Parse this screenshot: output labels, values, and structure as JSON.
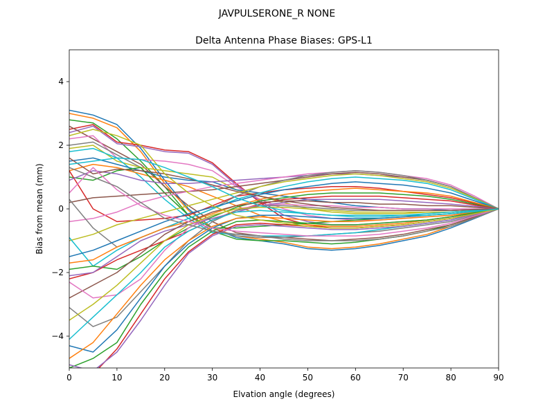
{
  "chart_data": {
    "type": "line",
    "suptitle": "JAVPULSERONE_R  NONE",
    "title": "Delta Antenna Phase Biases: GPS-L1",
    "xlabel": "Elvation angle (degrees)",
    "ylabel": "Bias from mean (mm)",
    "xlim": [
      0,
      90
    ],
    "ylim": [
      -5,
      5
    ],
    "xticks": [
      0,
      10,
      20,
      30,
      40,
      50,
      60,
      70,
      80,
      90
    ],
    "yticks": [
      -4,
      -2,
      0,
      2,
      4
    ],
    "grid": false,
    "legend": "none",
    "x": [
      0,
      5,
      10,
      15,
      20,
      25,
      30,
      35,
      40,
      45,
      50,
      55,
      60,
      65,
      70,
      75,
      80,
      85,
      90
    ],
    "colors": [
      "#1f77b4",
      "#ff7f0e",
      "#2ca02c",
      "#d62728",
      "#9467bd",
      "#8c564b",
      "#e377c2",
      "#7f7f7f",
      "#bcbd22",
      "#17becf"
    ],
    "series": [
      {
        "values": [
          3.1,
          2.95,
          2.65,
          1.9,
          0.9,
          0.0,
          -0.6,
          -0.9,
          -1.0,
          -1.1,
          -1.25,
          -1.3,
          -1.25,
          -1.15,
          -1.0,
          -0.85,
          -0.6,
          -0.3,
          0.0
        ]
      },
      {
        "values": [
          3.0,
          2.85,
          2.55,
          1.8,
          0.8,
          -0.05,
          -0.6,
          -0.85,
          -0.95,
          -1.05,
          -1.2,
          -1.25,
          -1.2,
          -1.1,
          -0.95,
          -0.8,
          -0.55,
          -0.28,
          0.0
        ]
      },
      {
        "values": [
          2.8,
          2.7,
          2.2,
          1.5,
          0.7,
          -0.2,
          -0.7,
          -0.95,
          -1.0,
          -1.0,
          -1.05,
          -1.1,
          -1.05,
          -0.95,
          -0.85,
          -0.7,
          -0.5,
          -0.25,
          0.0
        ]
      },
      {
        "values": [
          2.5,
          2.65,
          2.1,
          2.0,
          1.85,
          1.8,
          1.45,
          0.8,
          0.2,
          -0.3,
          -0.5,
          -0.6,
          -0.6,
          -0.55,
          -0.5,
          -0.4,
          -0.3,
          -0.15,
          0.0
        ]
      },
      {
        "values": [
          2.4,
          2.6,
          2.05,
          1.95,
          1.8,
          1.75,
          1.4,
          0.75,
          0.25,
          -0.2,
          -0.4,
          -0.5,
          -0.5,
          -0.45,
          -0.4,
          -0.35,
          -0.25,
          -0.12,
          0.0
        ]
      },
      {
        "values": [
          2.6,
          2.2,
          1.8,
          1.4,
          0.7,
          0.1,
          -0.4,
          -0.75,
          -0.85,
          -0.9,
          -0.95,
          -1.0,
          -0.95,
          -0.9,
          -0.8,
          -0.65,
          -0.5,
          -0.25,
          0.0
        ]
      },
      {
        "values": [
          2.2,
          2.3,
          1.6,
          1.55,
          1.5,
          1.4,
          1.2,
          0.7,
          0.3,
          0.0,
          -0.2,
          -0.3,
          -0.35,
          -0.35,
          -0.3,
          -0.25,
          -0.2,
          -0.1,
          0.0
        ]
      },
      {
        "values": [
          2.0,
          2.1,
          1.7,
          1.3,
          0.5,
          -0.2,
          -0.7,
          -0.85,
          -0.9,
          -0.9,
          -0.85,
          -0.8,
          -0.75,
          -0.7,
          -0.6,
          -0.5,
          -0.4,
          -0.2,
          0.0
        ]
      },
      {
        "values": [
          1.9,
          2.0,
          1.5,
          1.3,
          1.2,
          1.1,
          1.0,
          0.6,
          0.4,
          0.2,
          0.0,
          -0.1,
          -0.15,
          -0.15,
          -0.15,
          -0.1,
          -0.1,
          -0.05,
          0.0
        ]
      },
      {
        "values": [
          1.8,
          1.9,
          1.6,
          1.0,
          0.3,
          -0.3,
          -0.75,
          -0.8,
          -0.85,
          -0.85,
          -0.85,
          -0.8,
          -0.75,
          -0.65,
          -0.55,
          -0.45,
          -0.35,
          -0.15,
          0.0
        ]
      },
      {
        "values": [
          1.5,
          1.6,
          1.4,
          1.2,
          1.0,
          0.9,
          0.85,
          0.6,
          0.5,
          0.4,
          0.3,
          0.2,
          0.1,
          0.05,
          0.0,
          0.0,
          -0.05,
          -0.02,
          0.0
        ]
      },
      {
        "values": [
          1.2,
          1.4,
          1.3,
          1.1,
          0.9,
          0.7,
          0.4,
          0.1,
          -0.2,
          -0.4,
          -0.5,
          -0.55,
          -0.55,
          -0.5,
          -0.45,
          -0.35,
          -0.25,
          -0.12,
          0.0
        ]
      },
      {
        "values": [
          1.0,
          0.9,
          1.2,
          1.3,
          0.5,
          -0.2,
          -0.6,
          -0.6,
          -0.55,
          -0.5,
          -0.45,
          -0.4,
          -0.35,
          -0.3,
          -0.25,
          -0.2,
          -0.15,
          -0.08,
          0.0
        ]
      },
      {
        "values": [
          1.2,
          0.0,
          -0.4,
          -0.35,
          -0.3,
          -0.2,
          0.1,
          0.4,
          0.5,
          0.6,
          0.65,
          0.7,
          0.7,
          0.65,
          0.55,
          0.45,
          0.35,
          0.18,
          0.0
        ]
      },
      {
        "values": [
          0.9,
          1.2,
          1.1,
          0.9,
          0.8,
          0.8,
          0.85,
          0.9,
          0.95,
          1.0,
          1.05,
          1.1,
          1.1,
          1.05,
          1.0,
          0.9,
          0.7,
          0.35,
          0.0
        ]
      },
      {
        "values": [
          0.2,
          0.35,
          0.4,
          0.45,
          0.5,
          0.55,
          0.6,
          0.7,
          0.8,
          0.9,
          1.0,
          1.1,
          1.15,
          1.1,
          1.0,
          0.9,
          0.7,
          0.35,
          0.0
        ]
      },
      {
        "values": [
          -0.4,
          -0.3,
          -0.1,
          0.2,
          0.4,
          0.55,
          0.7,
          0.8,
          0.9,
          1.0,
          1.1,
          1.15,
          1.2,
          1.15,
          1.05,
          0.95,
          0.75,
          0.4,
          0.0
        ]
      },
      {
        "values": [
          0.3,
          -0.6,
          -1.2,
          -0.9,
          -0.6,
          -0.3,
          0.0,
          0.4,
          0.7,
          0.9,
          1.05,
          1.15,
          1.2,
          1.15,
          1.05,
          0.9,
          0.7,
          0.35,
          0.0
        ]
      },
      {
        "values": [
          -1.0,
          -0.8,
          -0.5,
          -0.3,
          -0.1,
          0.1,
          0.3,
          0.5,
          0.7,
          0.85,
          0.95,
          1.05,
          1.1,
          1.05,
          0.95,
          0.85,
          0.65,
          0.33,
          0.0
        ]
      },
      {
        "values": [
          -0.9,
          -1.8,
          -1.3,
          -0.9,
          -0.6,
          -0.3,
          0.0,
          0.3,
          0.5,
          0.7,
          0.85,
          0.95,
          1.0,
          0.95,
          0.9,
          0.8,
          0.6,
          0.3,
          0.0
        ]
      },
      {
        "values": [
          -1.5,
          -1.3,
          -1.0,
          -0.7,
          -0.4,
          -0.15,
          0.05,
          0.25,
          0.45,
          0.6,
          0.7,
          0.8,
          0.85,
          0.8,
          0.75,
          0.65,
          0.5,
          0.25,
          0.0
        ]
      },
      {
        "values": [
          -1.7,
          -1.6,
          -1.2,
          -0.9,
          -0.6,
          -0.4,
          -0.15,
          0.1,
          0.3,
          0.45,
          0.55,
          0.6,
          0.65,
          0.6,
          0.55,
          0.5,
          0.4,
          0.2,
          0.0
        ]
      },
      {
        "values": [
          -1.9,
          -1.8,
          -1.9,
          -1.5,
          -1.0,
          -0.6,
          -0.25,
          0.05,
          0.25,
          0.35,
          0.45,
          0.5,
          0.5,
          0.5,
          0.45,
          0.4,
          0.3,
          0.15,
          0.0
        ]
      },
      {
        "values": [
          -2.2,
          -2.0,
          -1.6,
          -1.3,
          -1.0,
          -0.7,
          -0.35,
          -0.05,
          0.15,
          0.3,
          0.35,
          0.4,
          0.4,
          0.4,
          0.35,
          0.3,
          0.25,
          0.12,
          0.0
        ]
      },
      {
        "values": [
          -2.1,
          -2.0,
          -1.5,
          -1.0,
          -0.7,
          -0.5,
          -0.3,
          -0.1,
          0.1,
          0.2,
          0.3,
          0.3,
          0.3,
          0.3,
          0.25,
          0.2,
          0.15,
          0.08,
          0.0
        ]
      },
      {
        "values": [
          -2.8,
          -2.4,
          -2.0,
          -1.4,
          -0.8,
          -0.4,
          -0.1,
          0.1,
          0.2,
          0.25,
          0.25,
          0.2,
          0.2,
          0.15,
          0.15,
          0.1,
          0.1,
          0.05,
          0.0
        ]
      },
      {
        "values": [
          -2.3,
          -2.8,
          -2.7,
          -2.2,
          -1.3,
          -0.6,
          -0.2,
          0.0,
          0.1,
          0.15,
          0.1,
          0.1,
          0.05,
          0.05,
          0.0,
          0.0,
          0.0,
          0.0,
          0.0
        ]
      },
      {
        "values": [
          -3.1,
          -3.7,
          -3.4,
          -2.6,
          -1.8,
          -1.0,
          -0.4,
          -0.05,
          0.1,
          0.1,
          0.05,
          0.0,
          -0.05,
          -0.05,
          -0.05,
          -0.05,
          -0.05,
          -0.02,
          0.0
        ]
      },
      {
        "values": [
          -3.5,
          -3.0,
          -2.4,
          -1.7,
          -1.0,
          -0.5,
          -0.2,
          0.0,
          0.05,
          0.05,
          0.0,
          -0.05,
          -0.1,
          -0.1,
          -0.1,
          -0.1,
          -0.1,
          -0.05,
          0.0
        ]
      },
      {
        "values": [
          -4.1,
          -3.4,
          -2.7,
          -2.0,
          -1.2,
          -0.7,
          -0.35,
          -0.1,
          -0.05,
          -0.1,
          -0.15,
          -0.2,
          -0.2,
          -0.2,
          -0.2,
          -0.15,
          -0.1,
          -0.05,
          0.0
        ]
      },
      {
        "values": [
          -4.3,
          -4.5,
          -3.8,
          -2.8,
          -1.8,
          -1.1,
          -0.6,
          -0.3,
          -0.2,
          -0.2,
          -0.25,
          -0.3,
          -0.3,
          -0.3,
          -0.25,
          -0.2,
          -0.15,
          -0.08,
          0.0
        ]
      },
      {
        "values": [
          -4.7,
          -4.2,
          -3.3,
          -2.4,
          -1.6,
          -1.0,
          -0.55,
          -0.3,
          -0.25,
          -0.3,
          -0.35,
          -0.4,
          -0.4,
          -0.35,
          -0.3,
          -0.25,
          -0.2,
          -0.1,
          0.0
        ]
      },
      {
        "values": [
          -5.0,
          -4.7,
          -4.2,
          -3.0,
          -2.0,
          -1.2,
          -0.7,
          -0.4,
          -0.35,
          -0.4,
          -0.45,
          -0.5,
          -0.5,
          -0.45,
          -0.4,
          -0.35,
          -0.25,
          -0.12,
          0.0
        ]
      },
      {
        "values": [
          -5.3,
          -5.2,
          -4.4,
          -3.3,
          -2.2,
          -1.35,
          -0.8,
          -0.5,
          -0.45,
          -0.5,
          -0.55,
          -0.6,
          -0.6,
          -0.55,
          -0.5,
          -0.4,
          -0.3,
          -0.15,
          0.0
        ]
      },
      {
        "values": [
          -4.9,
          -5.1,
          -4.5,
          -3.5,
          -2.4,
          -1.4,
          -0.85,
          -0.55,
          -0.5,
          -0.55,
          -0.6,
          -0.65,
          -0.65,
          -0.6,
          -0.55,
          -0.45,
          -0.35,
          -0.17,
          0.0
        ]
      },
      {
        "values": [
          1.6,
          1.1,
          1.25,
          1.2,
          1.1,
          0.95,
          0.75,
          0.55,
          0.4,
          0.25,
          0.15,
          0.05,
          0.0,
          -0.05,
          -0.05,
          -0.05,
          -0.05,
          -0.02,
          0.0
        ]
      },
      {
        "values": [
          0.5,
          1.3,
          0.6,
          0.1,
          -0.2,
          -0.4,
          -0.6,
          -0.7,
          -0.75,
          -0.8,
          -0.85,
          -0.85,
          -0.85,
          -0.8,
          -0.7,
          -0.6,
          -0.45,
          -0.22,
          0.0
        ]
      },
      {
        "values": [
          1.3,
          1.0,
          0.7,
          0.2,
          -0.3,
          -0.5,
          -0.7,
          -0.8,
          -0.85,
          -0.95,
          -1.0,
          -1.0,
          -1.0,
          -0.95,
          -0.85,
          -0.7,
          -0.55,
          -0.28,
          0.0
        ]
      },
      {
        "values": [
          2.3,
          2.5,
          2.3,
          2.0,
          1.1,
          0.5,
          0.1,
          -0.2,
          -0.35,
          -0.45,
          -0.55,
          -0.6,
          -0.6,
          -0.55,
          -0.5,
          -0.4,
          -0.3,
          -0.15,
          0.0
        ]
      },
      {
        "values": [
          1.4,
          1.5,
          1.6,
          1.55,
          1.3,
          1.0,
          0.7,
          0.35,
          0.1,
          -0.05,
          -0.15,
          -0.2,
          -0.25,
          -0.25,
          -0.2,
          -0.2,
          -0.15,
          -0.08,
          0.0
        ]
      }
    ]
  }
}
